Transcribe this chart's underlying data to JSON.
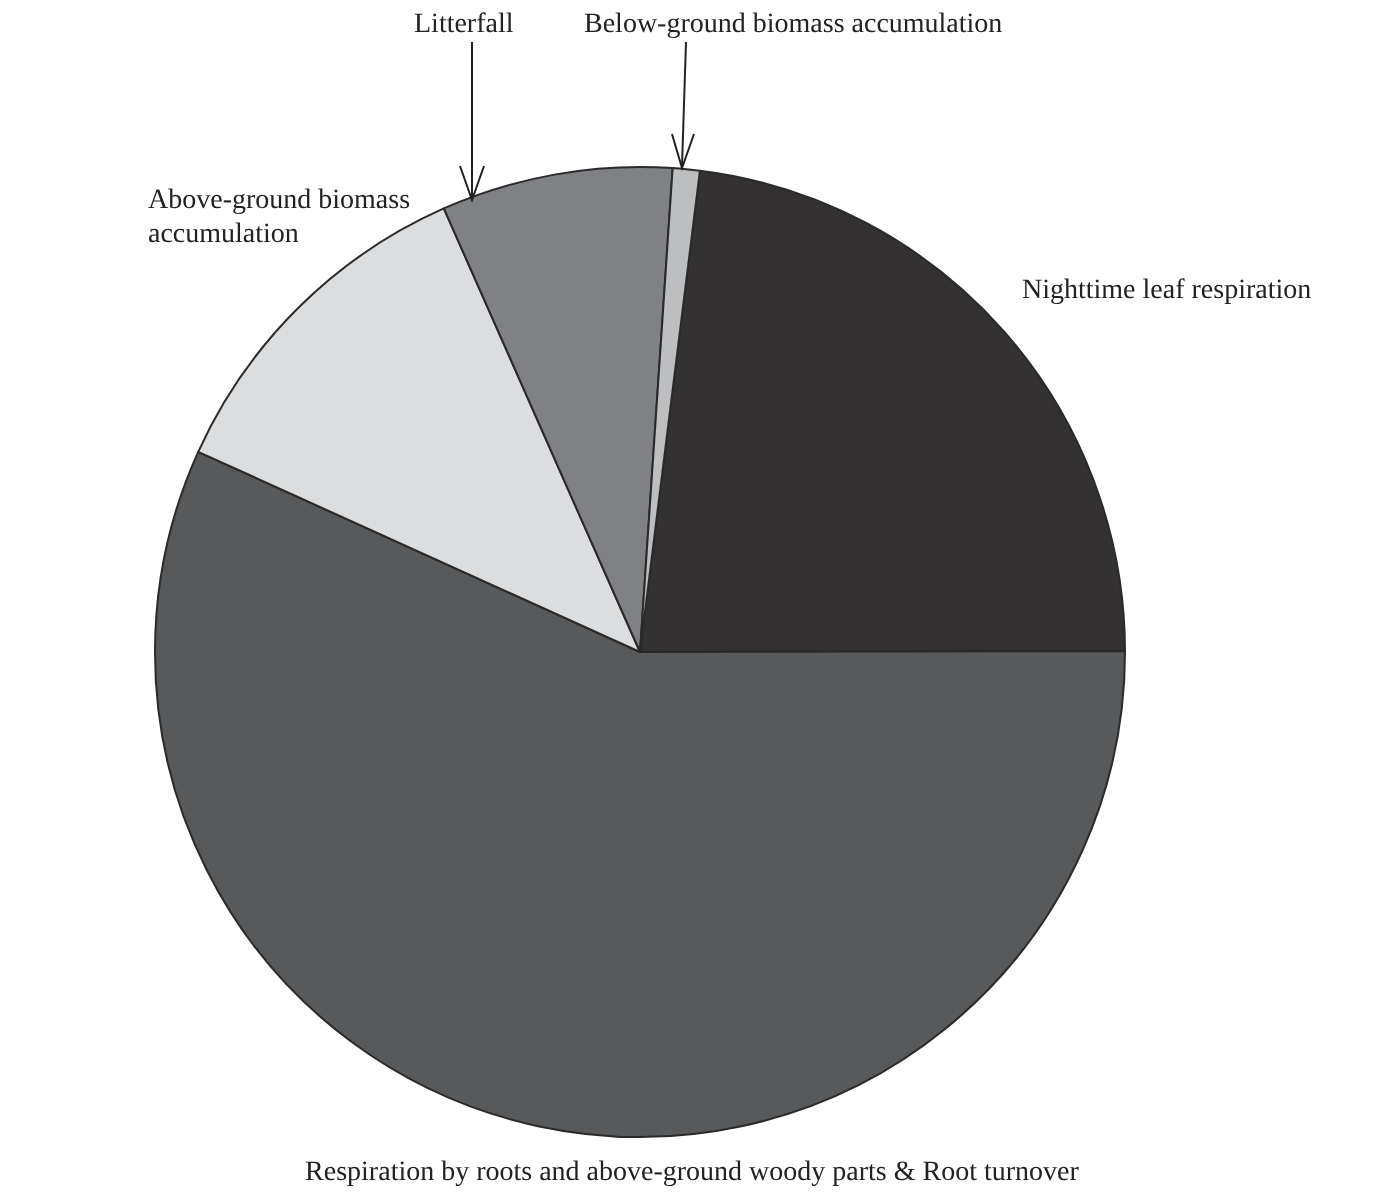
{
  "chart_data": {
    "type": "pie",
    "categories": [
      "Nighttime leaf respiration",
      "Respiration by roots and above-ground woody parts & Root turnover",
      "Above-ground biomass accumulation",
      "Litterfall",
      "Below-ground biomass accumulation"
    ],
    "values": [
      23,
      56.8,
      11.6,
      7.7,
      0.9
    ],
    "colors": [
      "#333132",
      "#58595b",
      "#dcdddf",
      "#808184",
      "#bdbec0"
    ],
    "legend": false
  }
}
